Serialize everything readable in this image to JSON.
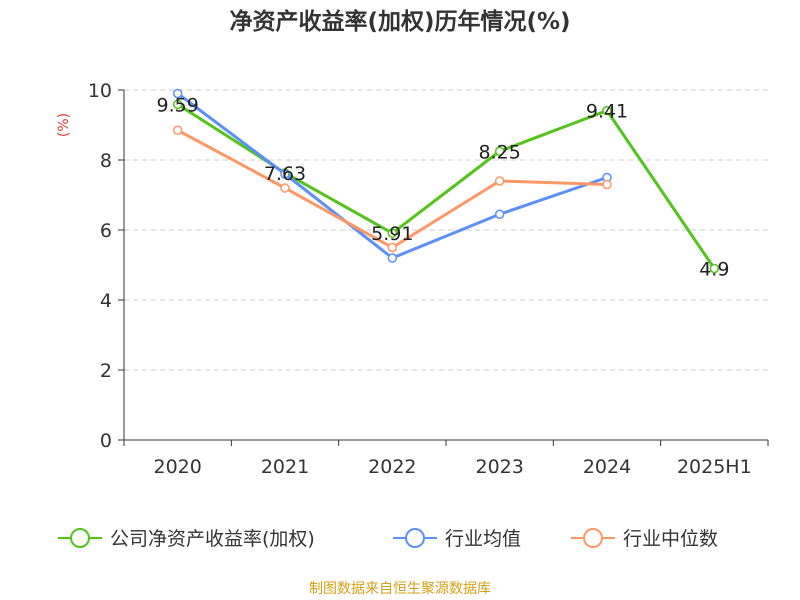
{
  "chart_data": {
    "type": "line",
    "title": "净资产收益率(加权)历年情况(%)",
    "ylabel": "(%)",
    "xlabel": "",
    "categories": [
      "2020",
      "2021",
      "2022",
      "2023",
      "2024",
      "2025H1"
    ],
    "ylim": [
      0,
      10
    ],
    "yticks": [
      0,
      2,
      4,
      6,
      8,
      10
    ],
    "grid": true,
    "legend_position": "bottom",
    "series": [
      {
        "name": "公司净资产收益率(加权)",
        "color": "#52c41a",
        "values": [
          9.59,
          7.63,
          5.91,
          8.25,
          9.41,
          4.9
        ],
        "labels": [
          "9.59",
          "7.63",
          "5.91",
          "8.25",
          "9.41",
          "4.9"
        ]
      },
      {
        "name": "行业均值",
        "color": "#5b8ff9",
        "values": [
          9.9,
          7.6,
          5.2,
          6.45,
          7.5,
          null
        ]
      },
      {
        "name": "行业中位数",
        "color": "#ff9866",
        "values": [
          8.85,
          7.2,
          5.5,
          7.4,
          7.3,
          null
        ]
      }
    ]
  },
  "source": {
    "text": "制图数据来自恒生聚源数据库",
    "color": "#d4a017"
  },
  "ylabel_color": "#e23c3c"
}
